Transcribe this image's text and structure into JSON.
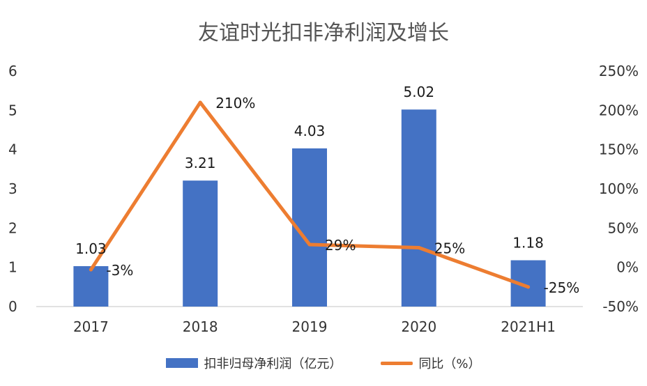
{
  "chart_data": {
    "type": "bar",
    "title": "友谊时光扣非净利润及增长",
    "categories": [
      "2017",
      "2018",
      "2019",
      "2020",
      "2021H1"
    ],
    "series": [
      {
        "name": "扣非归母净利润（亿元）",
        "type": "bar",
        "axis": "left",
        "color": "#4472C4",
        "values": [
          1.03,
          3.21,
          4.03,
          5.02,
          1.18
        ],
        "value_labels": [
          "1.03",
          "3.21",
          "4.03",
          "5.02",
          "1.18"
        ]
      },
      {
        "name": "同比（%）",
        "type": "line",
        "axis": "right",
        "color": "#ED7D31",
        "values": [
          -3,
          210,
          29,
          25,
          -25
        ],
        "value_labels": [
          "-3%",
          "210%",
          "29%",
          "25%",
          "-25%"
        ]
      }
    ],
    "y_left": {
      "range": [
        0,
        6
      ],
      "ticks": [
        0,
        1,
        2,
        3,
        4,
        5,
        6
      ],
      "tick_labels": [
        "0",
        "1",
        "2",
        "3",
        "4",
        "5",
        "6"
      ]
    },
    "y_right": {
      "range": [
        -50,
        250
      ],
      "ticks": [
        -50,
        0,
        50,
        100,
        150,
        200,
        250
      ],
      "tick_labels": [
        "-50%",
        "0%",
        "50%",
        "100%",
        "150%",
        "200%",
        "250%"
      ]
    },
    "gridlines": false,
    "legend_position": "bottom"
  }
}
